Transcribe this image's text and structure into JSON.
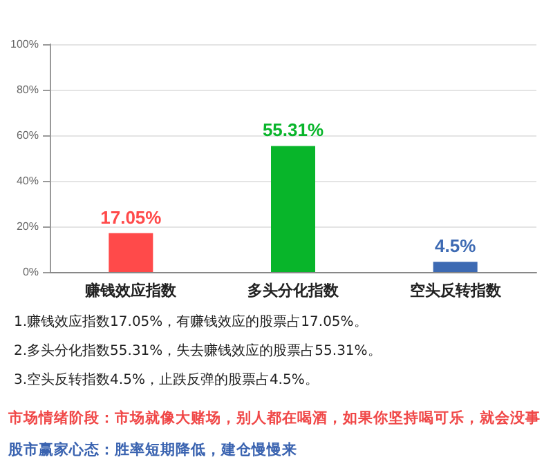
{
  "chart_data": {
    "type": "bar",
    "categories": [
      "赚钱效应指数",
      "多头分化指数",
      "空头反转指数"
    ],
    "values": [
      17.05,
      55.31,
      4.5
    ],
    "colors": [
      "#ff4a4a",
      "#08b52a",
      "#3d6ab3"
    ],
    "value_labels": [
      "17.05%",
      "55.31%",
      "4.5%"
    ],
    "ylim": [
      0,
      100
    ],
    "yticks": [
      {
        "value": 0,
        "label": "0%"
      },
      {
        "value": 20,
        "label": "20%"
      },
      {
        "value": 40,
        "label": "40%"
      },
      {
        "value": 60,
        "label": "60%"
      },
      {
        "value": 80,
        "label": "80%"
      },
      {
        "value": 100,
        "label": "100%"
      }
    ],
    "grid": "y",
    "annotations": [
      "1.赚钱效应指数17.05%，有赚钱效应的股票占17.05%。",
      "2.多头分化指数55.31%，失去赚钱效应的股票占55.31%。",
      "3.空头反转指数4.5%，止跌反弹的股票占4.5%。",
      "市场情绪阶段：市场就像大赌场，别人都在喝酒，如果你坚持喝可乐，就会没事",
      "股市赢家心态：胜率短期降低，建仓慢慢来"
    ]
  }
}
